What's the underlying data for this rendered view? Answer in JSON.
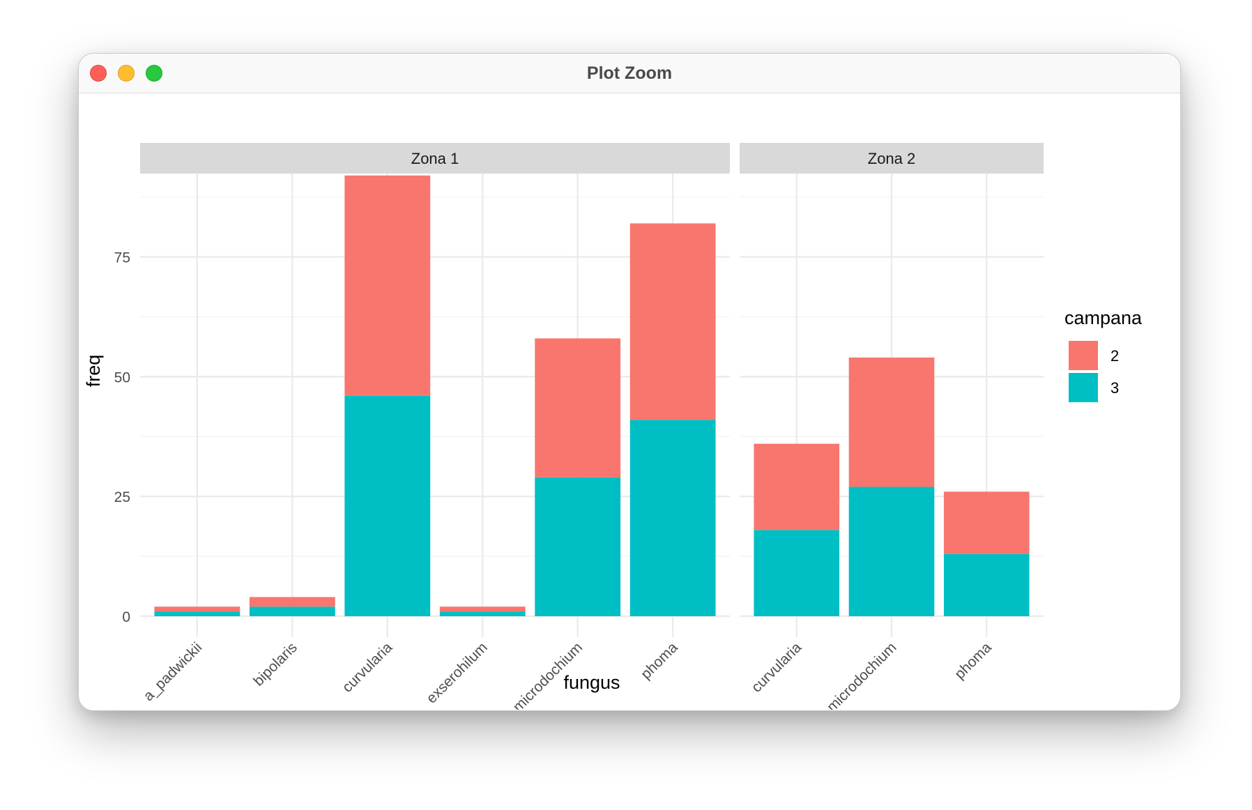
{
  "window": {
    "title": "Plot Zoom"
  },
  "chart_data": {
    "type": "bar",
    "stacked": true,
    "faceted_by": "zona",
    "xlabel": "fungus",
    "ylabel": "freq",
    "ylim": [
      0,
      94
    ],
    "yticks": [
      0,
      25,
      50,
      75
    ],
    "grid": true,
    "legend": {
      "title": "campana",
      "placement": "right",
      "entries": [
        {
          "name": "2",
          "color": "#f8766d"
        },
        {
          "name": "3",
          "color": "#00bfc4"
        }
      ]
    },
    "panels": [
      {
        "label": "Zona 1",
        "categories": [
          "a_padwickii",
          "bipolaris",
          "curvularia",
          "exserohilum",
          "microdochium",
          "phoma"
        ],
        "series": [
          {
            "name": "3",
            "values": [
              1,
              2,
              46,
              1,
              29,
              41
            ]
          },
          {
            "name": "2",
            "values": [
              1,
              2,
              46,
              1,
              29,
              41
            ]
          }
        ]
      },
      {
        "label": "Zona 2",
        "categories": [
          "curvularia",
          "microdochium",
          "phoma"
        ],
        "series": [
          {
            "name": "3",
            "values": [
              18,
              27,
              13
            ]
          },
          {
            "name": "2",
            "values": [
              18,
              27,
              13
            ]
          }
        ]
      }
    ]
  }
}
